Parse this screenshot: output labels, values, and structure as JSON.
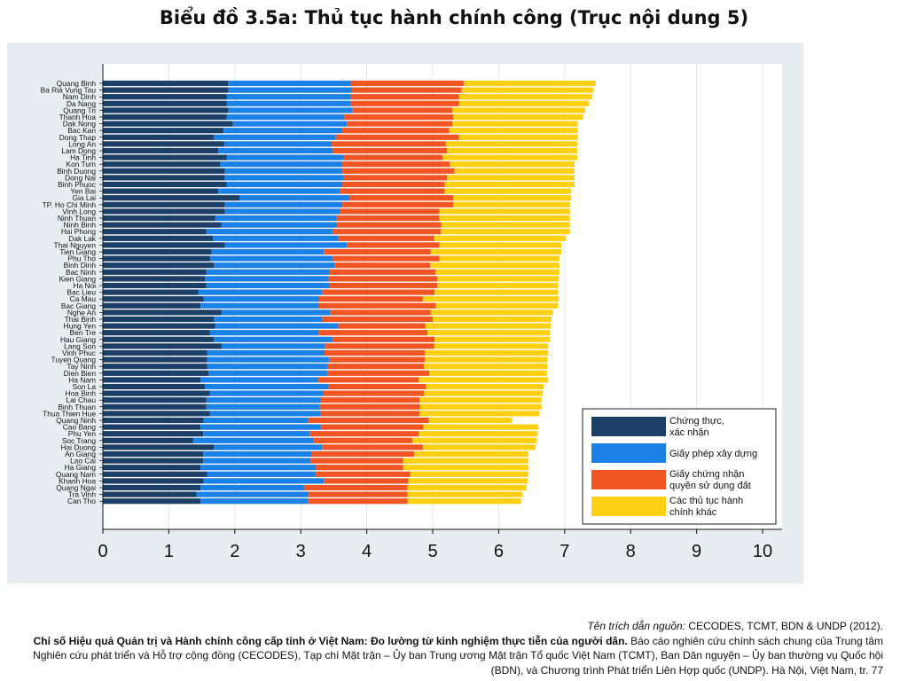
{
  "title": "Biểu đồ 3.5a: Thủ tục hành chính công (Trục nội dung 5)",
  "chart_data": {
    "type": "bar",
    "orientation": "horizontal",
    "stacked": true,
    "xlim": [
      0,
      10
    ],
    "x_ticks": [
      "0",
      "1",
      "2",
      "3",
      "4",
      "5",
      "6",
      "7",
      "8",
      "9",
      "10"
    ],
    "grid": "vertical",
    "legend_position": "bottom-right",
    "categories": [
      "Quang Binh",
      "Ba Ria Vung Tau",
      "Nam Dinh",
      "Da Nang",
      "Quang Tri",
      "Thanh Hoa",
      "Dak Nong",
      "Bac Kan",
      "Dong Thap",
      "Long An",
      "Lam Dong",
      "Ha Tinh",
      "Kon Tum",
      "Binh Duong",
      "Dong Nai",
      "Binh Phuoc",
      "Yen Bai",
      "Gia Lai",
      "TP. Ho Chi Minh",
      "Vinh Long",
      "Ninh Thuan",
      "Ninh Binh",
      "Hai Phong",
      "Dak Lak",
      "Thai Nguyen",
      "Tien Giang",
      "Phu Tho",
      "Binh Dinh",
      "Bac Ninh",
      "Kien Giang",
      "Ha Noi",
      "Bac Lieu",
      "Ca Mau",
      "Bac Giang",
      "Nghe An",
      "Thai Binh",
      "Hung Yen",
      "Ben Tre",
      "Hau Giang",
      "Lang Son",
      "Vinh Phuc",
      "Tuyen Quang",
      "Tay Ninh",
      "Dien Bien",
      "Ha Nam",
      "Son La",
      "Hoa Binh",
      "Lai Chau",
      "Binh Thuan",
      "Thua Thien Hue",
      "Quang Ninh",
      "Cao Bang",
      "Phu Yen",
      "Soc Trang",
      "Hai Duong",
      "An Giang",
      "Lao Cai",
      "Ha Giang",
      "Quang Nam",
      "Khanh Hoa",
      "Quang Ngai",
      "Tra Vinh",
      "Can Tho"
    ],
    "series": [
      {
        "name": "Chứng thực, xác nhận",
        "color": "#1b3f66",
        "values": [
          1.9,
          1.9,
          1.88,
          1.88,
          1.9,
          1.88,
          1.97,
          1.83,
          1.68,
          1.84,
          1.75,
          1.88,
          1.78,
          1.85,
          1.85,
          1.88,
          1.75,
          2.07,
          1.85,
          1.85,
          1.7,
          1.8,
          1.57,
          1.67,
          1.85,
          1.65,
          1.63,
          1.68,
          1.57,
          1.55,
          1.57,
          1.45,
          1.53,
          1.48,
          1.8,
          1.68,
          1.7,
          1.62,
          1.68,
          1.8,
          1.58,
          1.58,
          1.58,
          1.6,
          1.48,
          1.55,
          1.62,
          1.57,
          1.57,
          1.62,
          1.53,
          1.48,
          1.52,
          1.37,
          1.68,
          1.52,
          1.52,
          1.48,
          1.58,
          1.53,
          1.48,
          1.42,
          1.48
        ]
      },
      {
        "name": "Giấy phép xây dựng",
        "color": "#1a82e6",
        "values": [
          1.85,
          1.87,
          1.87,
          1.87,
          1.88,
          1.78,
          1.73,
          1.8,
          1.85,
          1.63,
          1.73,
          1.77,
          1.85,
          1.78,
          1.8,
          1.75,
          1.85,
          1.67,
          1.78,
          1.75,
          1.85,
          1.75,
          1.92,
          1.9,
          1.85,
          1.7,
          1.85,
          1.83,
          1.87,
          1.87,
          1.87,
          1.88,
          1.75,
          1.8,
          1.65,
          1.65,
          1.87,
          1.65,
          1.8,
          1.57,
          1.78,
          1.85,
          1.82,
          1.8,
          1.78,
          1.87,
          1.72,
          1.73,
          1.72,
          1.68,
          1.58,
          1.83,
          1.62,
          1.82,
          1.65,
          1.65,
          1.63,
          1.75,
          1.65,
          1.82,
          1.57,
          1.7,
          1.63
        ]
      },
      {
        "name": "Giấy chứng nhận quyền sử dụng đất",
        "color": "#f05523",
        "values": [
          1.72,
          1.67,
          1.65,
          1.65,
          1.52,
          1.65,
          1.6,
          1.62,
          1.87,
          1.73,
          1.74,
          1.5,
          1.63,
          1.7,
          1.57,
          1.55,
          1.58,
          1.57,
          1.68,
          1.5,
          1.55,
          1.58,
          1.63,
          1.45,
          1.4,
          1.62,
          1.62,
          1.45,
          1.6,
          1.65,
          1.63,
          1.7,
          1.57,
          1.77,
          1.52,
          1.67,
          1.32,
          1.65,
          1.55,
          1.65,
          1.52,
          1.45,
          1.47,
          1.55,
          1.53,
          1.48,
          1.53,
          1.5,
          1.52,
          1.5,
          1.83,
          1.55,
          1.65,
          1.5,
          1.52,
          1.55,
          1.4,
          1.32,
          1.43,
          1.28,
          1.57,
          1.5,
          1.51
        ]
      },
      {
        "name": "Các thủ tục hành chính  khác",
        "color": "#ffd014",
        "values": [
          2.0,
          2.0,
          2.02,
          1.97,
          2.01,
          1.97,
          1.9,
          1.95,
          1.8,
          1.99,
          1.97,
          2.04,
          1.89,
          1.82,
          1.93,
          1.97,
          1.92,
          1.79,
          1.77,
          1.98,
          1.98,
          1.95,
          1.96,
          2.0,
          1.85,
          1.98,
          1.82,
          1.96,
          1.88,
          1.84,
          1.83,
          1.87,
          2.06,
          1.85,
          1.85,
          1.8,
          1.9,
          1.86,
          1.75,
          1.73,
          1.87,
          1.86,
          1.87,
          1.78,
          1.96,
          1.78,
          1.8,
          1.85,
          1.84,
          1.82,
          1.26,
          1.74,
          1.8,
          1.89,
          1.71,
          1.73,
          1.9,
          1.9,
          1.79,
          1.81,
          1.8,
          1.74,
          1.72
        ]
      }
    ]
  },
  "source": {
    "citation_label": "Tên trích dẫn nguồn:",
    "citation_text": " CECODES, TCMT, BDN & UNDP (2012).",
    "report_title": "Chỉ số Hiệu quả Quản trị và Hành chính công cấp tỉnh ở Việt Nam: Đo lường từ kinh nghiệm thực tiễn của người dân.",
    "report_desc": " Báo cáo nghiên cứu chính sách chung của Trung tâm Nghiên cứu phát triển và Hỗ trợ cộng đồng (CECODES), Tạp chí Mặt trận – Ủy ban Trung ương Mặt trận Tổ quốc Việt Nam (TCMT), Ban Dân nguyện – Ủy ban thường vụ Quốc hội (BDN), và Chương trình Phát triển Liên Hợp quốc (UNDP). Hà Nội, Việt Nam, tr. 77"
  }
}
